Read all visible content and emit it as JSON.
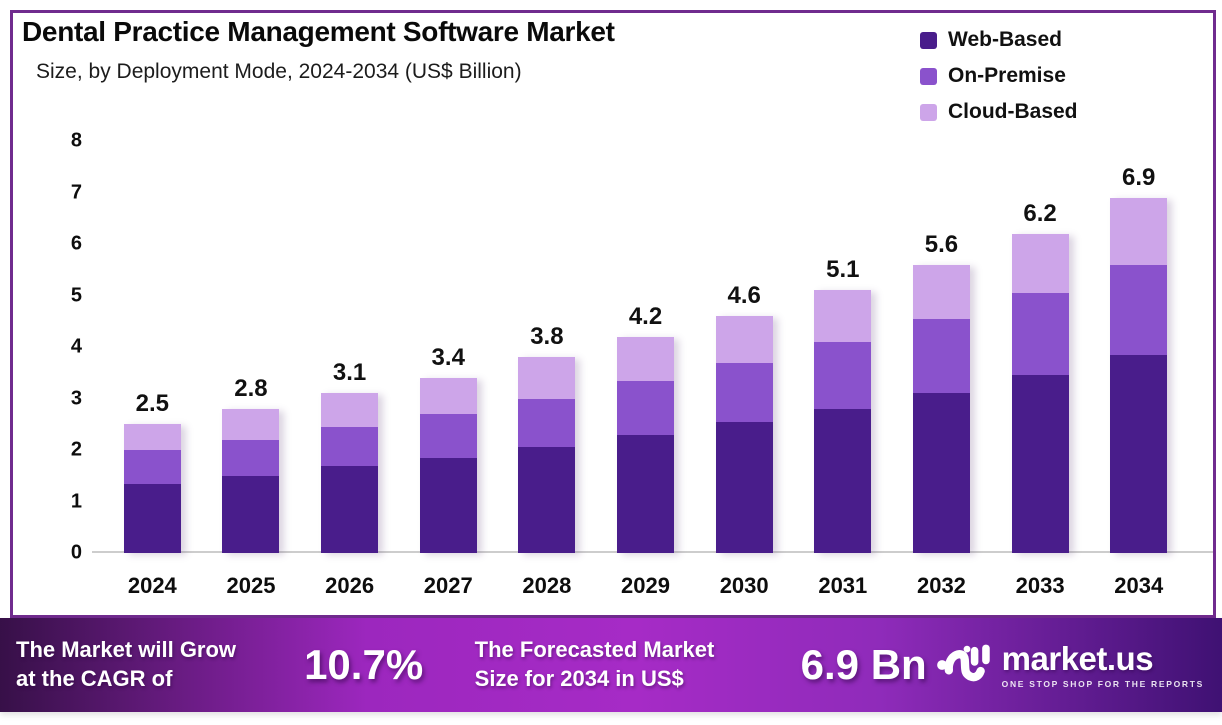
{
  "header": {
    "title": "Dental Practice Management Software Market",
    "subtitle": "Size, by Deployment Mode, 2024-2034 (US$ Billion)"
  },
  "chart_data": {
    "type": "bar",
    "stacked": true,
    "title": "Dental Practice Management Software Market",
    "subtitle": "Size, by Deployment Mode, 2024-2034 (US$ Billion)",
    "categories": [
      2024,
      2025,
      2026,
      2027,
      2028,
      2029,
      2030,
      2031,
      2032,
      2033,
      2034
    ],
    "series": [
      {
        "name": "Web-Based",
        "color": "#491D8B",
        "values": [
          1.35,
          1.5,
          1.7,
          1.85,
          2.05,
          2.3,
          2.55,
          2.8,
          3.1,
          3.45,
          3.85
        ]
      },
      {
        "name": "On-Premise",
        "color": "#8A52CC",
        "values": [
          0.65,
          0.7,
          0.75,
          0.85,
          0.95,
          1.05,
          1.15,
          1.3,
          1.45,
          1.6,
          1.75
        ]
      },
      {
        "name": "Cloud-Based",
        "color": "#CDA5E9",
        "values": [
          0.5,
          0.6,
          0.65,
          0.7,
          0.8,
          0.85,
          0.9,
          1.0,
          1.05,
          1.15,
          1.3
        ]
      }
    ],
    "totals": [
      2.5,
      2.8,
      3.1,
      3.4,
      3.8,
      4.2,
      4.6,
      5.1,
      5.6,
      6.2,
      6.9
    ],
    "ylim": [
      0,
      8
    ],
    "ytick_step": 1,
    "grid": false,
    "legend_position": "top-right"
  },
  "banner": {
    "cagr_label_line1": "The Market will Grow",
    "cagr_label_line2": "at the CAGR of",
    "cagr_value": "10.7%",
    "forecast_label_line1": "The Forecasted Market",
    "forecast_label_line2": "Size for 2034 in US$",
    "forecast_value": "6.9 Bn",
    "brand_name": "market.us",
    "brand_tagline": "ONE STOP SHOP FOR THE REPORTS",
    "gradient": [
      "#371048",
      "#9C27BE",
      "#A62BC6",
      "#8F2BBA",
      "#3F1173"
    ]
  },
  "colors": {
    "frame_border": "#702B8E",
    "axis_line": "#CDCDCD",
    "text": "#111111"
  }
}
